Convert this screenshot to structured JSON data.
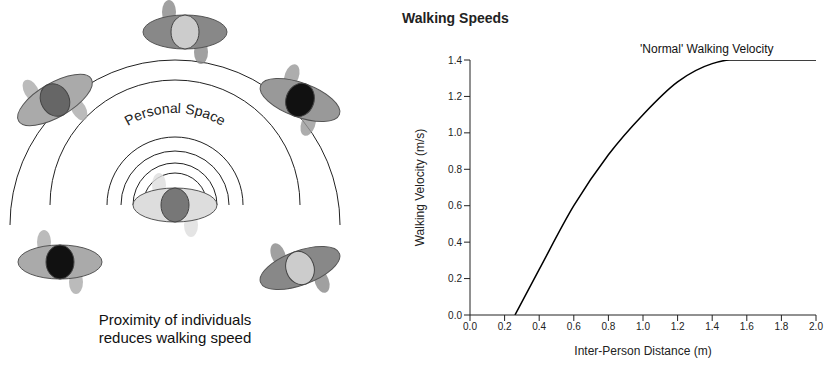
{
  "diagram": {
    "personal_space_label": "Personal Space",
    "caption_lines": [
      "Proximity of individuals",
      "reduces walking speed"
    ]
  },
  "chart_data": {
    "type": "line",
    "title": "Walking Speeds",
    "annotations": [
      "'Normal' Walking Velocity"
    ],
    "x_label": "Inter-Person Distance (m)",
    "y_label": "Walking Velocity (m/s)",
    "x": [
      0.26,
      0.4,
      0.6,
      0.8,
      1.0,
      1.2,
      1.4,
      1.5,
      2.0
    ],
    "values": [
      0,
      0.25,
      0.6,
      0.88,
      1.1,
      1.28,
      1.38,
      1.4,
      1.4
    ],
    "color": "#000000",
    "grid": false,
    "xlim": [
      0,
      2
    ],
    "ylim": [
      0,
      1.4
    ],
    "xticks": [
      {
        "value": 0,
        "label": "0.0"
      },
      0.2,
      0.4,
      0.6,
      0.8,
      {
        "value": 1,
        "label": "1.0"
      },
      1.2,
      1.4,
      1.6,
      1.8,
      {
        "value": 2,
        "label": "2.0"
      }
    ],
    "yticks": [
      {
        "value": 0,
        "label": "0.0"
      },
      0.2,
      0.4,
      0.6,
      0.8,
      {
        "value": 1,
        "label": "1.0"
      },
      1.2,
      1.4
    ]
  }
}
